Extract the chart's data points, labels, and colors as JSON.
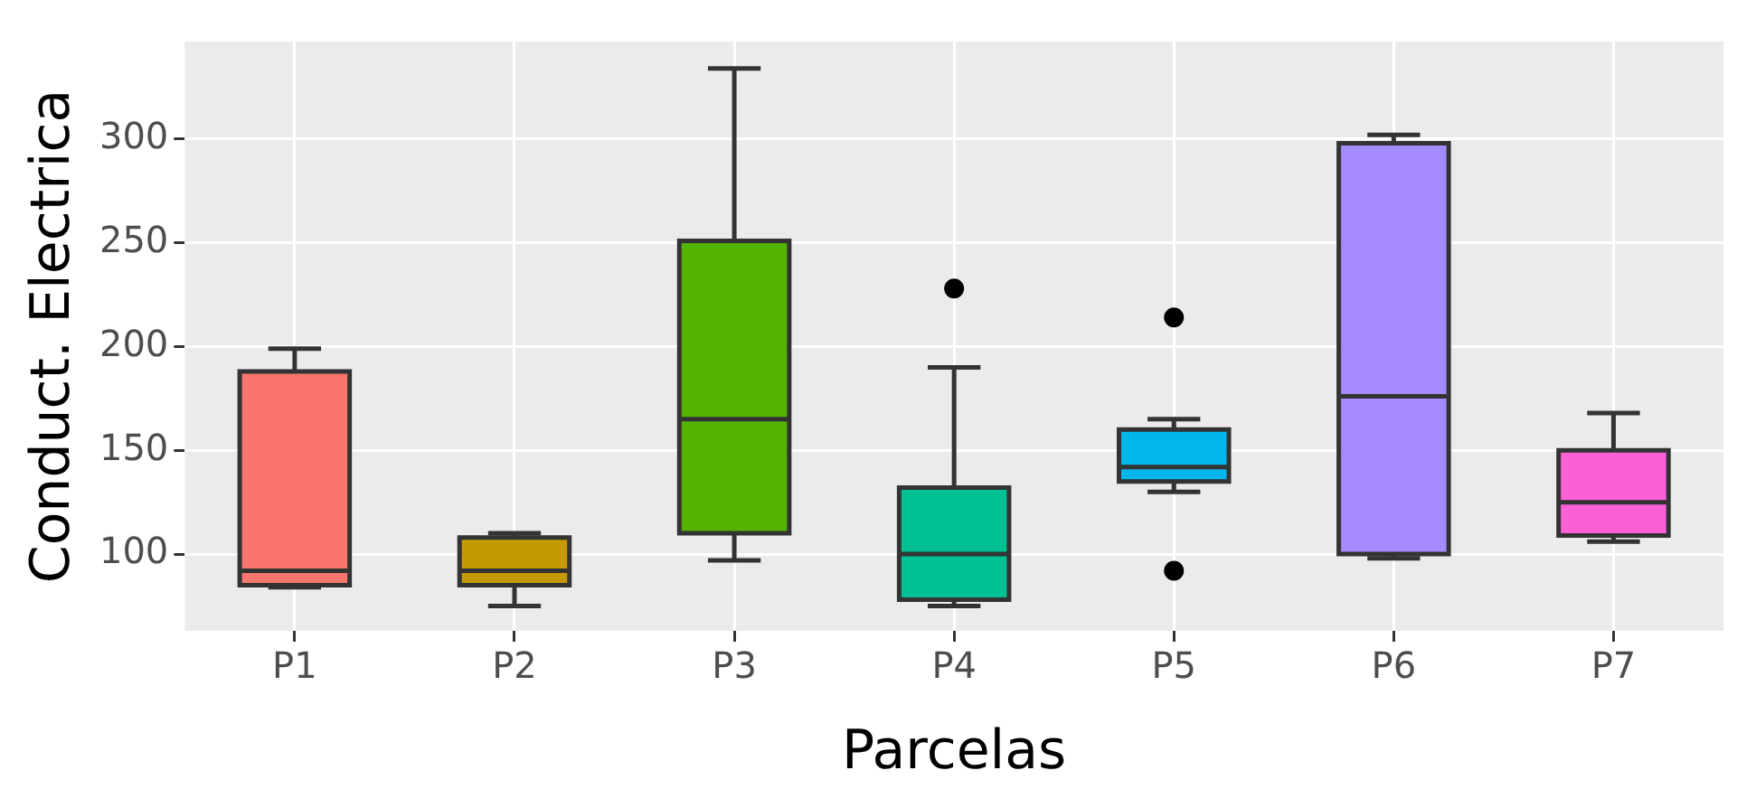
{
  "chart_data": {
    "type": "box",
    "xlabel": "Parcelas",
    "ylabel": "Conduct. Electrica",
    "categories": [
      "P1",
      "P2",
      "P3",
      "P4",
      "P5",
      "P6",
      "P7"
    ],
    "colors": [
      "#f8766d",
      "#c49a00",
      "#53b400",
      "#00c094",
      "#00b6eb",
      "#a58aff",
      "#fb61d7"
    ],
    "boxes": [
      {
        "low": 84,
        "q1": 85,
        "median": 92,
        "q3": 188,
        "high": 199
      },
      {
        "low": 75,
        "q1": 85,
        "median": 92,
        "q3": 108,
        "high": 110
      },
      {
        "low": 97,
        "q1": 110,
        "median": 165,
        "q3": 251,
        "high": 334
      },
      {
        "low": 75,
        "q1": 78,
        "median": 100,
        "q3": 132,
        "high": 190,
        "outliers": [
          228
        ]
      },
      {
        "low": 130,
        "q1": 135,
        "median": 142,
        "q3": 160,
        "high": 165,
        "outliers": [
          214,
          92
        ]
      },
      {
        "low": 98,
        "q1": 100,
        "median": 176,
        "q3": 298,
        "high": 302
      },
      {
        "low": 106,
        "q1": 109,
        "median": 125,
        "q3": 150,
        "high": 168
      }
    ],
    "ylim": [
      63,
      347
    ],
    "yticks": [
      100,
      150,
      200,
      250,
      300
    ],
    "grid": true,
    "legend": false
  }
}
